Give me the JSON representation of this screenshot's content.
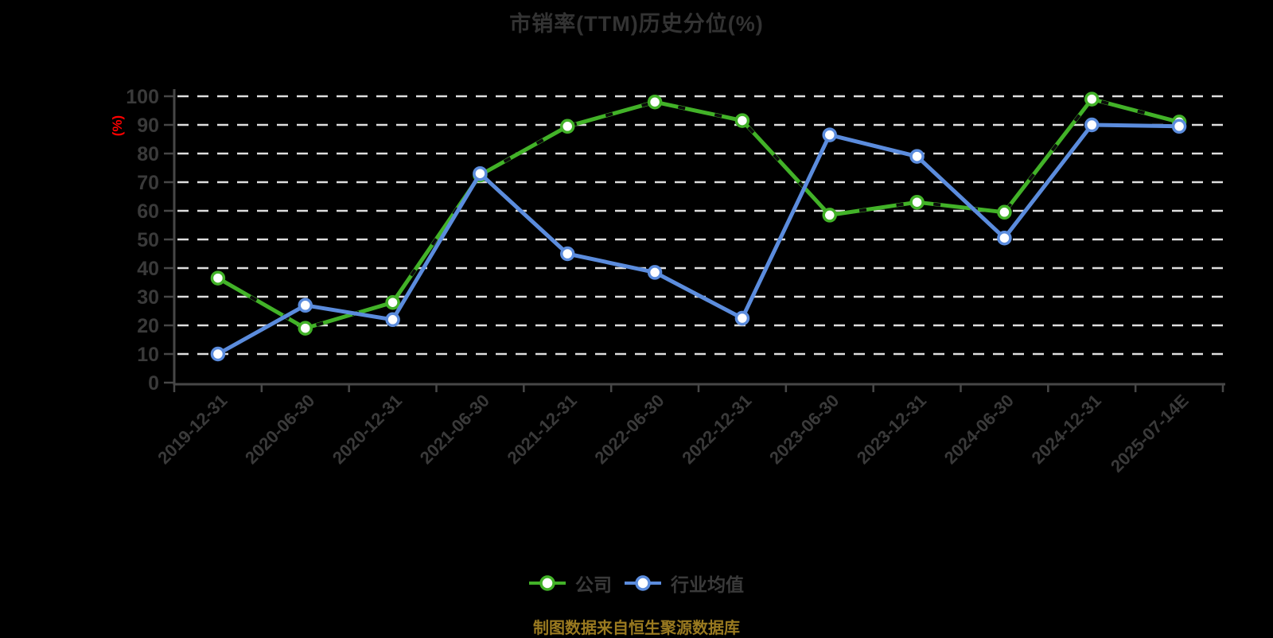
{
  "title": "市销率(TTM)历史分位(%)",
  "footer_note": "制图数据来自恒生聚源数据库",
  "y_axis": {
    "unit_label": "(%)",
    "min": 0,
    "max": 100,
    "tick_step": 10
  },
  "legend": {
    "items": [
      {
        "label": "公司",
        "color": "#42b228",
        "marker": "circle-on-line"
      },
      {
        "label": "行业均值",
        "color": "#5b8cdd",
        "marker": "circle-on-line"
      }
    ]
  },
  "chart_data": {
    "type": "line",
    "title": "市销率(TTM)历史分位(%)",
    "ylabel": "(%)",
    "ylim": [
      0,
      100
    ],
    "ytick_step": 10,
    "grid": "horizontal-dashed",
    "legend_position": "bottom",
    "x_labels_rotation": 45,
    "categories": [
      "2019-12-31",
      "2020-06-30",
      "2020-12-31",
      "2021-06-30",
      "2021-12-31",
      "2022-06-30",
      "2022-12-31",
      "2023-06-30",
      "2023-12-31",
      "2024-06-30",
      "2024-12-31",
      "2025-07-14E"
    ],
    "series": [
      {
        "name": "公司",
        "key": "company",
        "color": "#42b228",
        "values": [
          36.5,
          19,
          28,
          72.5,
          89.5,
          98,
          91.5,
          58.5,
          63,
          59.5,
          99,
          91
        ]
      },
      {
        "name": "行业均值",
        "key": "industry",
        "color": "#5b8cdd",
        "values": [
          10,
          27,
          22,
          73,
          45,
          38.5,
          22.5,
          86.5,
          79,
          50.5,
          90,
          89.5
        ]
      }
    ]
  },
  "colors": {
    "background": "#000000",
    "title_text": "#333333",
    "axis_line": "#474747",
    "tick_label": "#3a3a3a",
    "gridline": "#dedede",
    "unit_label": "#ff0000",
    "footer_text": "#9a7a20",
    "marker_fill": "#ffffff",
    "company_dash_overlay": "#0b0b0b"
  }
}
